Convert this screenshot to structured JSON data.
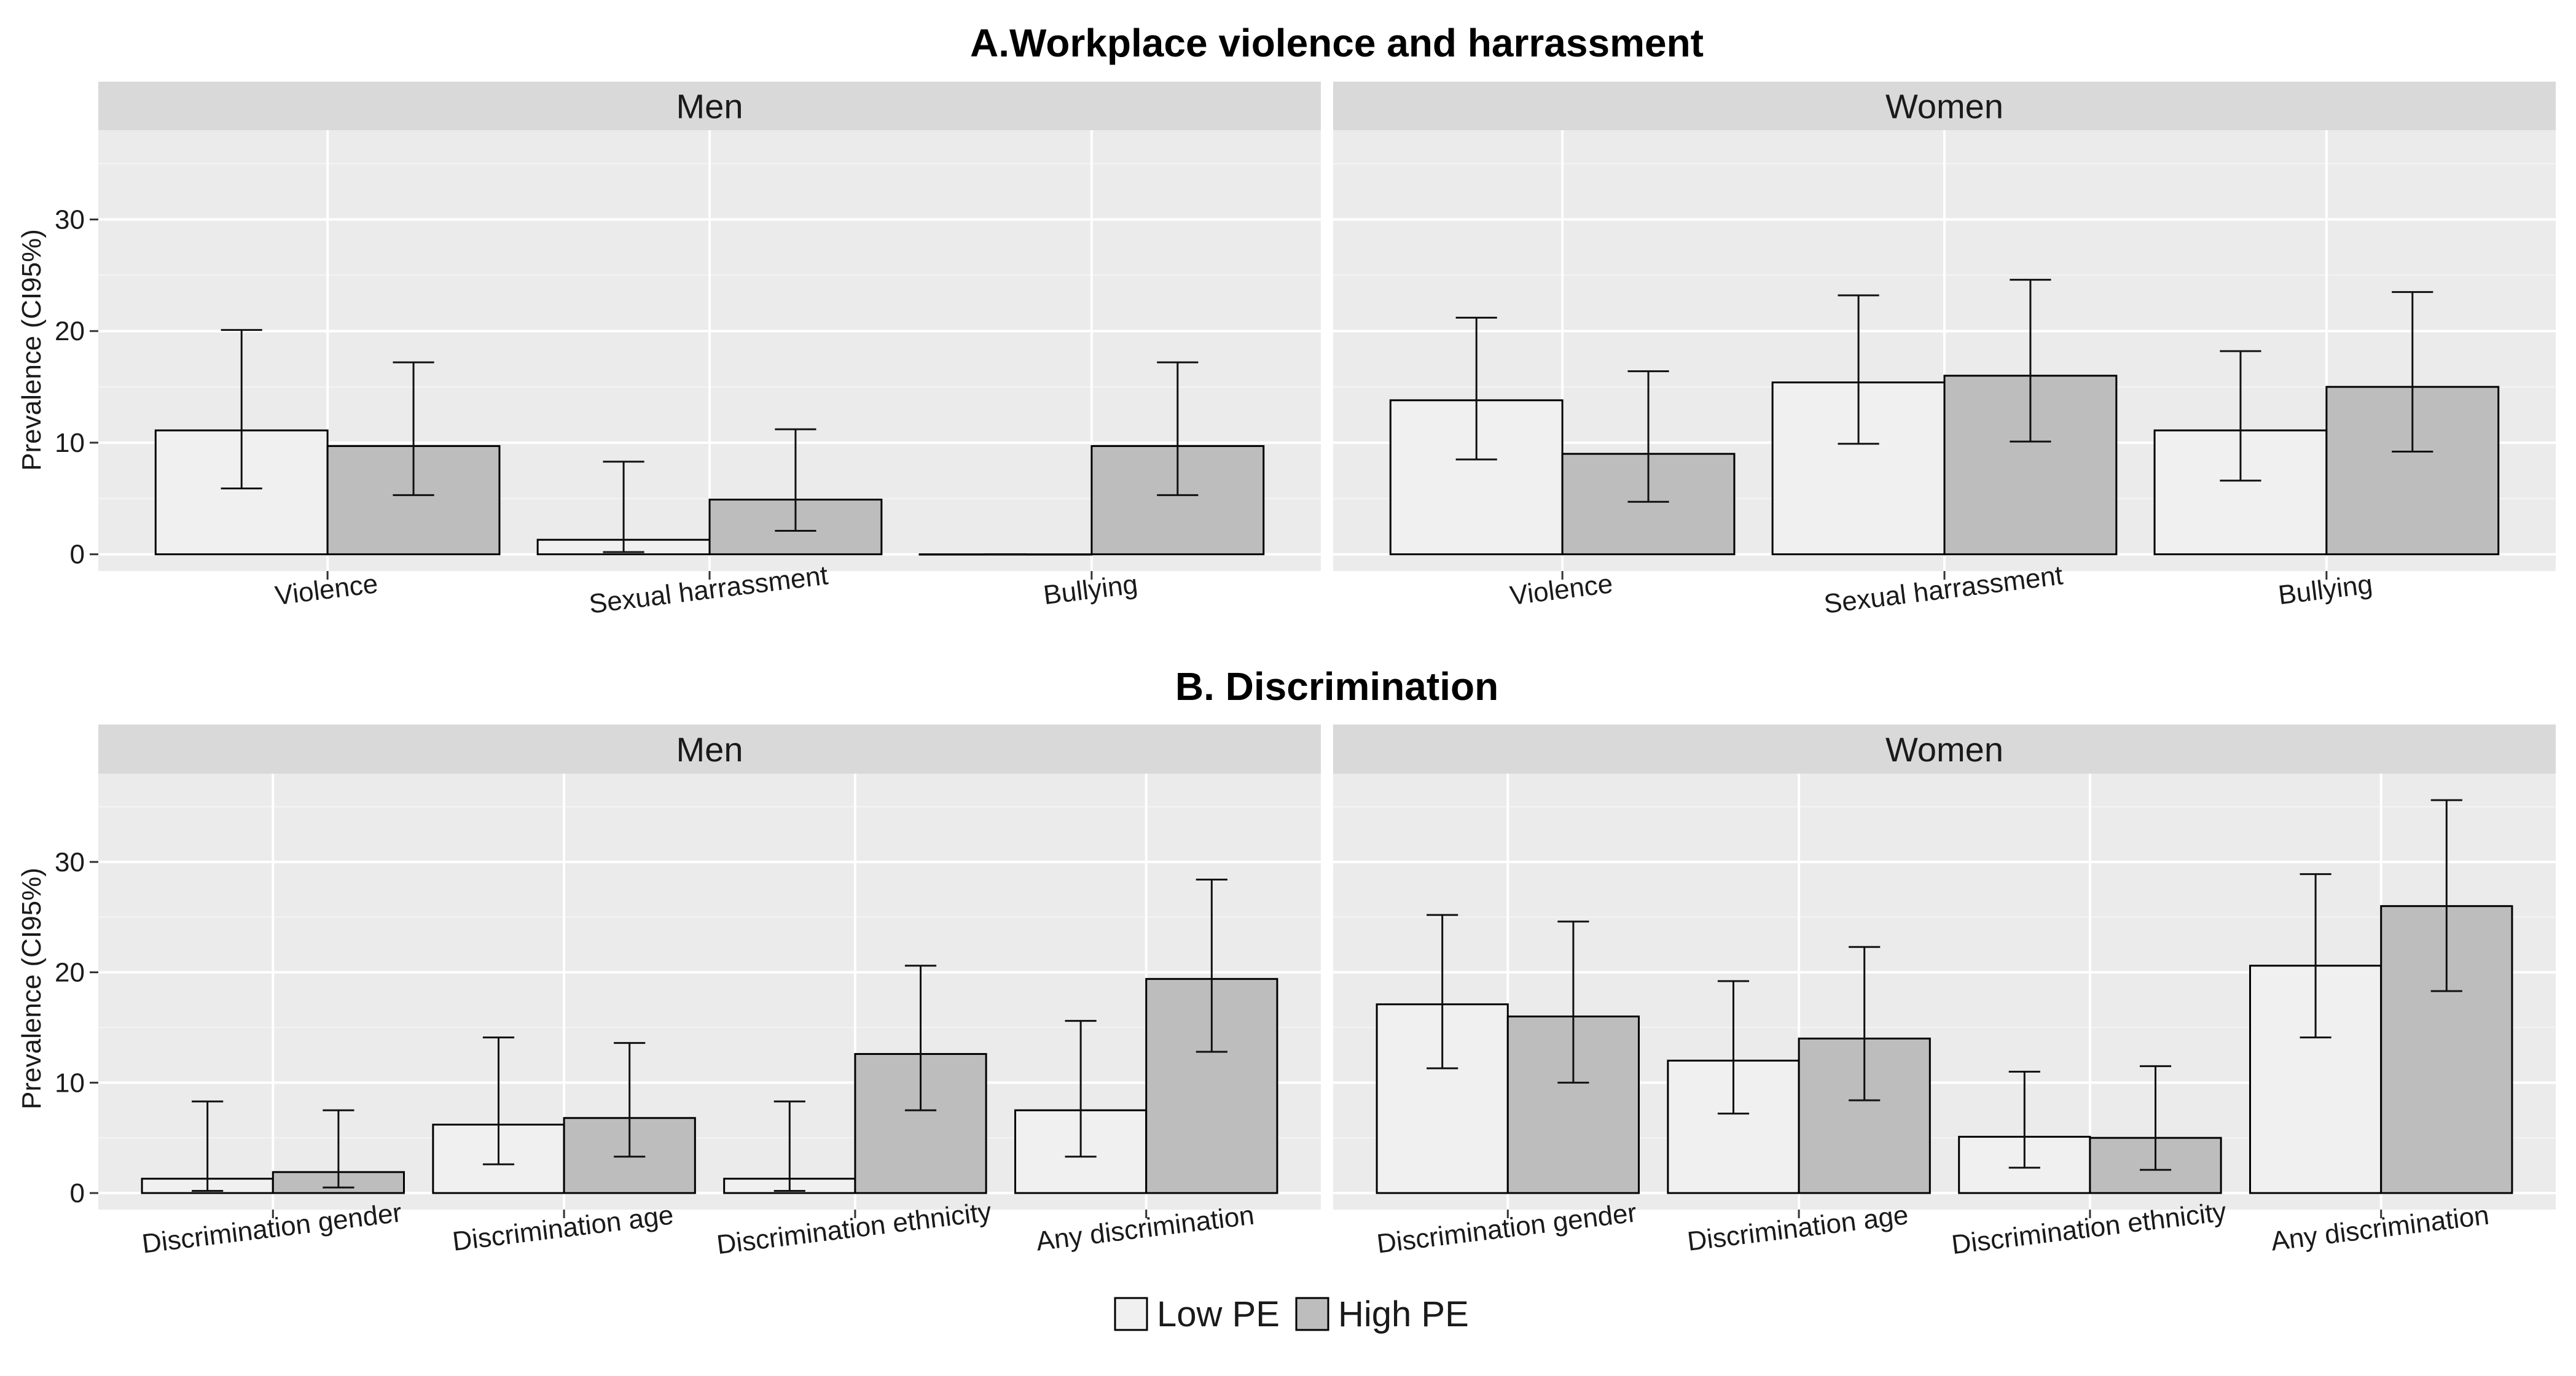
{
  "colors": {
    "panel_bg": "#EBEBEB",
    "strip_bg": "#D9D9D9",
    "grid_major": "#FFFFFF",
    "grid_minor": "#F4F4F4",
    "low_fill": "#F0F0F0",
    "high_fill": "#BDBDBD",
    "outline": "#000000"
  },
  "legend": {
    "items": [
      {
        "label": "Low PE",
        "color": "#F0F0F0"
      },
      {
        "label": "High PE",
        "color": "#BDBDBD"
      }
    ]
  },
  "chart_data": [
    {
      "type": "bar",
      "title": "A.Workplace violence and harrassment",
      "ylabel": "Prevalence (CI95%)",
      "ylim": [
        -1.5,
        38
      ],
      "yticks": [
        0,
        10,
        20,
        30
      ],
      "categories": [
        "Violence",
        "Sexual harrassment",
        "Bullying"
      ],
      "facets": [
        {
          "name": "Men",
          "series": [
            {
              "name": "Low PE",
              "values": [
                11.1,
                1.3,
                0.0
              ],
              "lower": [
                5.9,
                0.2,
                0.0
              ],
              "upper": [
                20.1,
                8.3,
                0.0
              ]
            },
            {
              "name": "High PE",
              "values": [
                9.7,
                4.9,
                9.7
              ],
              "lower": [
                5.3,
                2.1,
                5.3
              ],
              "upper": [
                17.2,
                11.2,
                17.2
              ]
            }
          ]
        },
        {
          "name": "Women",
          "series": [
            {
              "name": "Low PE",
              "values": [
                13.8,
                15.4,
                11.1
              ],
              "lower": [
                8.5,
                9.9,
                6.6
              ],
              "upper": [
                21.2,
                23.2,
                18.2
              ]
            },
            {
              "name": "High PE",
              "values": [
                9.0,
                16.0,
                15.0
              ],
              "lower": [
                4.7,
                10.1,
                9.2
              ],
              "upper": [
                16.4,
                24.6,
                23.5
              ]
            }
          ]
        }
      ]
    },
    {
      "type": "bar",
      "title": "B. Discrimination",
      "ylabel": "Prevalence (CI95%)",
      "ylim": [
        -1.5,
        38
      ],
      "yticks": [
        0,
        10,
        20,
        30
      ],
      "categories": [
        "Discrimination gender",
        "Discrimination age",
        "Discrimination ethnicity",
        "Any discrimination"
      ],
      "facets": [
        {
          "name": "Men",
          "series": [
            {
              "name": "Low PE",
              "values": [
                1.3,
                6.2,
                1.3,
                7.5
              ],
              "lower": [
                0.2,
                2.6,
                0.2,
                3.3
              ],
              "upper": [
                8.3,
                14.1,
                8.3,
                15.6
              ]
            },
            {
              "name": "High PE",
              "values": [
                1.9,
                6.8,
                12.6,
                19.4
              ],
              "lower": [
                0.5,
                3.3,
                7.5,
                12.8
              ],
              "upper": [
                7.5,
                13.6,
                20.6,
                28.4
              ]
            }
          ]
        },
        {
          "name": "Women",
          "series": [
            {
              "name": "Low PE",
              "values": [
                17.1,
                12.0,
                5.1,
                20.6
              ],
              "lower": [
                11.3,
                7.2,
                2.3,
                14.1
              ],
              "upper": [
                25.2,
                19.2,
                11.0,
                28.9
              ]
            },
            {
              "name": "High PE",
              "values": [
                16.0,
                14.0,
                5.0,
                26.0
              ],
              "lower": [
                10.0,
                8.4,
                2.1,
                18.3
              ],
              "upper": [
                24.6,
                22.3,
                11.5,
                35.6
              ]
            }
          ]
        }
      ]
    }
  ]
}
